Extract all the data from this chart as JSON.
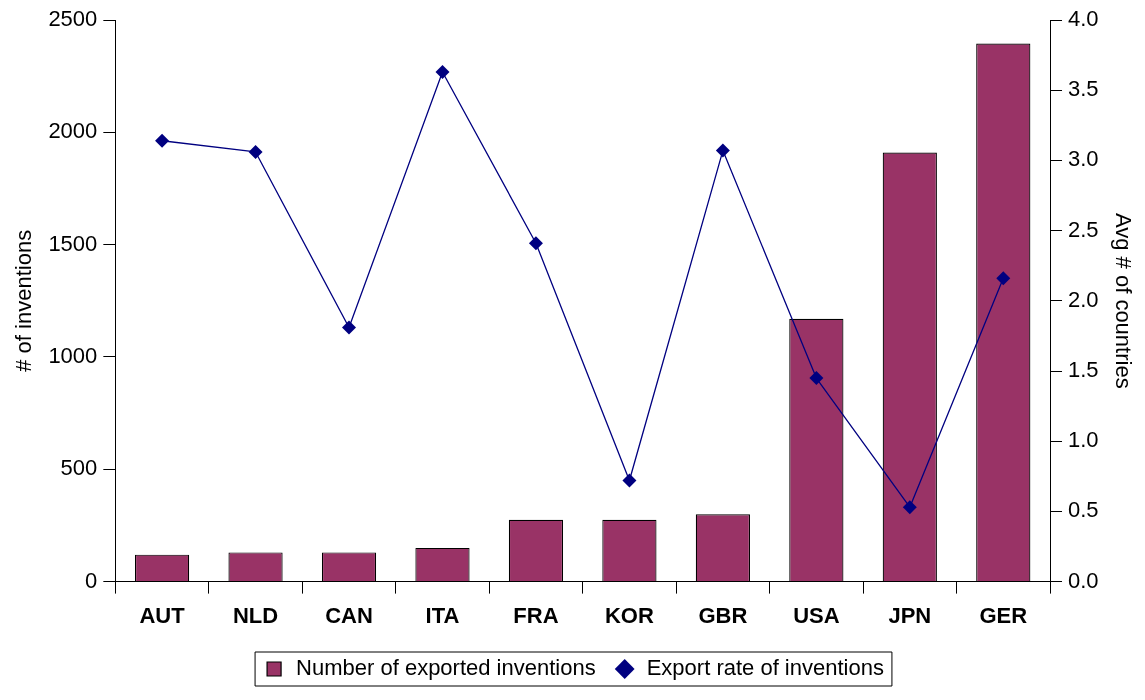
{
  "chart_data": {
    "type": "bar",
    "ylabel": "# of inventions",
    "y2label": "Avg # of countries",
    "categories": [
      "AUT",
      "NLD",
      "CAN",
      "ITA",
      "FRA",
      "KOR",
      "GBR",
      "USA",
      "JPN",
      "GER"
    ],
    "series": [
      {
        "name": "Number of exported inventions",
        "color": "#993366",
        "values": [
          120,
          130,
          130,
          150,
          275,
          275,
          300,
          1170,
          1910,
          2395
        ]
      },
      {
        "name": "Export rate of inventions",
        "type": "line",
        "axis": "y2",
        "color": "#000080",
        "marker": "diamond",
        "values": [
          3.14,
          3.06,
          1.81,
          3.63,
          2.41,
          0.72,
          3.07,
          1.45,
          0.53,
          2.16
        ]
      }
    ],
    "ylim": [
      0,
      2500
    ],
    "yticks": [
      0,
      500,
      1000,
      1500,
      2000,
      2500
    ],
    "y2lim": [
      0,
      4
    ],
    "y2ticks": [
      {
        "value": 0,
        "label": "0.0"
      },
      {
        "value": 0.5,
        "label": "0.5"
      },
      {
        "value": 1,
        "label": "1.0"
      },
      {
        "value": 1.5,
        "label": "1.5"
      },
      {
        "value": 2,
        "label": "2.0"
      },
      {
        "value": 2.5,
        "label": "2.5"
      },
      {
        "value": 3,
        "label": "3.0"
      },
      {
        "value": 3.5,
        "label": "3.5"
      },
      {
        "value": 4,
        "label": "4.0"
      }
    ],
    "grid": false,
    "legend": "bottom"
  }
}
